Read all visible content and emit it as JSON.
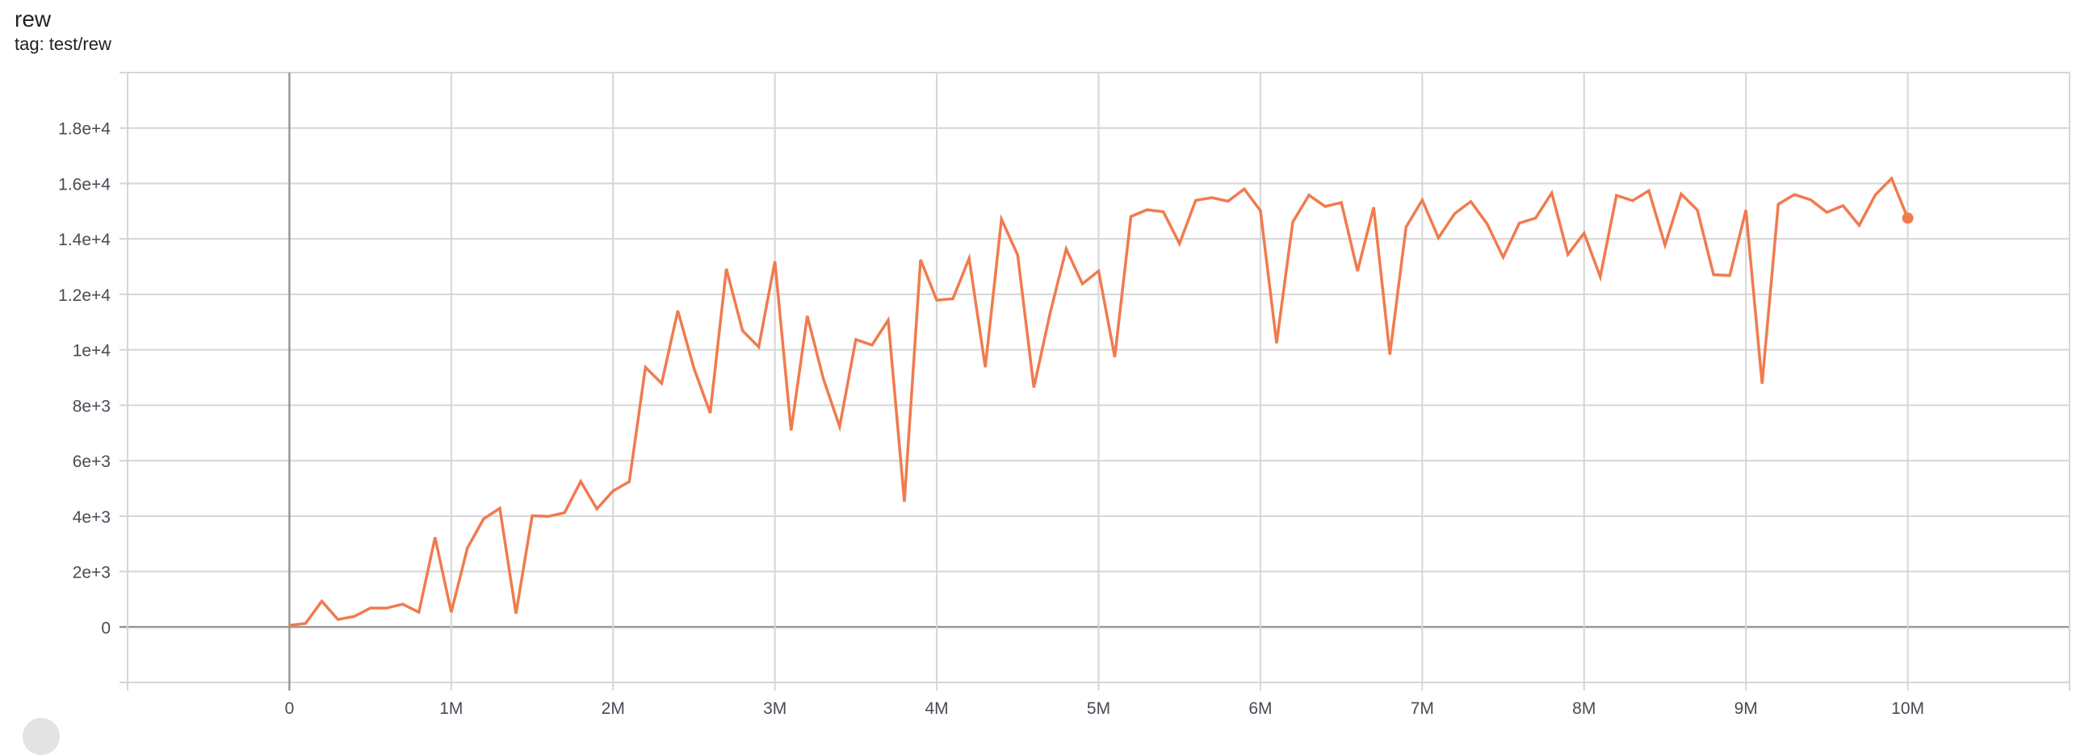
{
  "chart_data": {
    "type": "line",
    "title": "rew",
    "subtitle": "tag: test/rew",
    "xlabel": "",
    "ylabel": "",
    "xlim": [
      -1000000,
      11000000
    ],
    "ylim": [
      -2000,
      20000
    ],
    "grid": true,
    "line_color": "#f07b4e",
    "x_ticks": [
      0,
      1000000,
      2000000,
      3000000,
      4000000,
      5000000,
      6000000,
      7000000,
      8000000,
      9000000,
      10000000
    ],
    "x_tick_labels": [
      "0",
      "1M",
      "2M",
      "3M",
      "4M",
      "5M",
      "6M",
      "7M",
      "8M",
      "9M",
      "10M"
    ],
    "y_ticks": [
      0,
      2000,
      4000,
      6000,
      8000,
      10000,
      12000,
      14000,
      16000,
      18000
    ],
    "y_tick_labels": [
      "0",
      "2e+3",
      "4e+3",
      "6e+3",
      "8e+3",
      "1e+4",
      "1.2e+4",
      "1.4e+4",
      "1.6e+4",
      "1.8e+4"
    ],
    "series": [
      {
        "x_step": 100000,
        "y": [
          60,
          130,
          930,
          270,
          380,
          680,
          680,
          825,
          530,
          3230,
          530,
          2850,
          3900,
          4280,
          485,
          4010,
          3990,
          4120,
          5250,
          4260,
          4910,
          5240,
          9370,
          8790,
          11410,
          9330,
          7720,
          12920,
          10690,
          10100,
          13190,
          7090,
          11220,
          8940,
          7230,
          10370,
          10170,
          11070,
          4520,
          13250,
          11790,
          11840,
          13300,
          9370,
          14710,
          13420,
          8640,
          11310,
          13640,
          12380,
          12840,
          9740,
          14810,
          15050,
          14980,
          13830,
          15390,
          15490,
          15360,
          15800,
          15020,
          10240,
          14610,
          15580,
          15170,
          15310,
          12840,
          15140,
          9830,
          14430,
          15400,
          14040,
          14910,
          15350,
          14550,
          13340,
          14570,
          14750,
          15660,
          13440,
          14210,
          12630,
          15570,
          15380,
          15740,
          13780,
          15620,
          15040,
          12710,
          12680,
          15040,
          8780,
          15250,
          15600,
          15410,
          14960,
          15200,
          14490,
          15590,
          16180,
          14750
        ]
      }
    ]
  }
}
